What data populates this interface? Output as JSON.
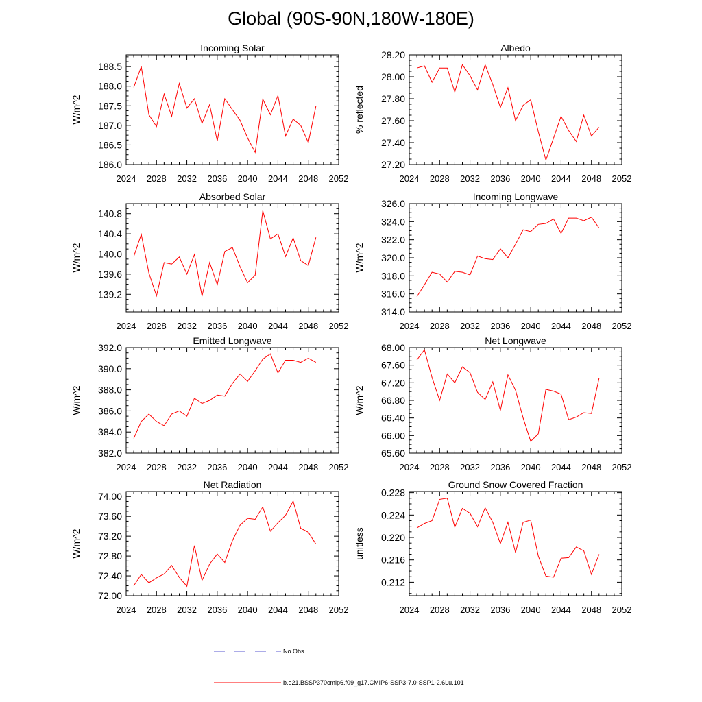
{
  "figure": {
    "title": "Global (90S-90N,180W-180E)",
    "legend": {
      "obs_label": "No Obs",
      "obs_color": "#5a5ad0",
      "model_label": "b.e21.BSSP370cmip6.f09_g17.CMIP6-SSP3-7.0-SSP1-2.6Lu.101",
      "model_color": "#ff0000"
    }
  },
  "chart_data": [
    {
      "type": "line",
      "title": "Incoming Solar",
      "ylabel": "W/m^2",
      "xlim": [
        2024,
        2052
      ],
      "ylim": [
        186.0,
        188.8
      ],
      "xticks": [
        "2024",
        "2028",
        "2032",
        "2036",
        "2040",
        "2044",
        "2048",
        "2052"
      ],
      "yticks": [
        "186.0",
        "186.5",
        "187.0",
        "187.5",
        "188.0",
        "188.5"
      ],
      "series": [
        {
          "color": "#ff0000",
          "x": [
            2025,
            2026,
            2027,
            2028,
            2029,
            2030,
            2031,
            2032,
            2033,
            2034,
            2035,
            2036,
            2037,
            2038,
            2039,
            2040,
            2041,
            2042,
            2043,
            2044,
            2045,
            2046,
            2047,
            2048,
            2049
          ],
          "y": [
            187.97,
            188.5,
            187.27,
            186.97,
            187.8,
            187.23,
            188.07,
            187.44,
            187.68,
            187.05,
            187.53,
            186.6,
            187.68,
            187.4,
            187.13,
            186.68,
            186.31,
            187.67,
            187.27,
            187.76,
            186.73,
            187.16,
            187.0,
            186.56,
            187.49
          ]
        }
      ]
    },
    {
      "type": "line",
      "title": "Albedo",
      "ylabel": "% reflected",
      "xlim": [
        2024,
        2052
      ],
      "ylim": [
        27.2,
        28.2
      ],
      "xticks": [
        "2024",
        "2028",
        "2032",
        "2036",
        "2040",
        "2044",
        "2048",
        "2052"
      ],
      "yticks": [
        "27.20",
        "27.40",
        "27.60",
        "27.80",
        "28.00",
        "28.20"
      ],
      "series": [
        {
          "color": "#ff0000",
          "x": [
            2025,
            2026,
            2027,
            2028,
            2029,
            2030,
            2031,
            2032,
            2033,
            2034,
            2035,
            2036,
            2037,
            2038,
            2039,
            2040,
            2041,
            2042,
            2043,
            2044,
            2045,
            2046,
            2047,
            2048,
            2049
          ],
          "y": [
            28.08,
            28.1,
            27.95,
            28.08,
            28.08,
            27.86,
            28.11,
            28.01,
            27.88,
            28.11,
            27.93,
            27.72,
            27.9,
            27.6,
            27.74,
            27.79,
            27.5,
            27.24,
            27.44,
            27.64,
            27.51,
            27.41,
            27.65,
            27.46,
            27.54
          ]
        }
      ]
    },
    {
      "type": "line",
      "title": "Absorbed Solar",
      "ylabel": "W/m^2",
      "xlim": [
        2024,
        2052
      ],
      "ylim": [
        138.85,
        141.0
      ],
      "xticks": [
        "2024",
        "2028",
        "2032",
        "2036",
        "2040",
        "2044",
        "2048",
        "2052"
      ],
      "yticks": [
        "139.2",
        "139.6",
        "140.0",
        "140.4",
        "140.8"
      ],
      "series": [
        {
          "color": "#ff0000",
          "x": [
            2025,
            2026,
            2027,
            2028,
            2029,
            2030,
            2031,
            2032,
            2033,
            2034,
            2035,
            2036,
            2037,
            2038,
            2039,
            2040,
            2041,
            2042,
            2043,
            2044,
            2045,
            2046,
            2047,
            2048,
            2049
          ],
          "y": [
            139.95,
            140.39,
            139.62,
            139.17,
            139.83,
            139.8,
            139.94,
            139.6,
            139.99,
            139.16,
            139.83,
            139.39,
            140.05,
            140.13,
            139.75,
            139.43,
            139.58,
            140.86,
            140.3,
            140.4,
            139.95,
            140.32,
            139.87,
            139.77,
            140.33
          ]
        }
      ]
    },
    {
      "type": "line",
      "title": "Incoming Longwave",
      "ylabel": "W/m^2",
      "xlim": [
        2024,
        2052
      ],
      "ylim": [
        314.0,
        326.0
      ],
      "xticks": [
        "2024",
        "2028",
        "2032",
        "2036",
        "2040",
        "2044",
        "2048",
        "2052"
      ],
      "yticks": [
        "314.0",
        "316.0",
        "318.0",
        "320.0",
        "322.0",
        "324.0",
        "326.0"
      ],
      "series": [
        {
          "color": "#ff0000",
          "x": [
            2025,
            2026,
            2027,
            2028,
            2029,
            2030,
            2031,
            2032,
            2033,
            2034,
            2035,
            2036,
            2037,
            2038,
            2039,
            2040,
            2041,
            2042,
            2043,
            2044,
            2045,
            2046,
            2047,
            2048,
            2049
          ],
          "y": [
            315.7,
            317.0,
            318.4,
            318.2,
            317.3,
            318.5,
            318.4,
            318.1,
            320.2,
            319.9,
            319.8,
            321.0,
            320.0,
            321.5,
            323.1,
            322.9,
            323.7,
            323.8,
            324.3,
            322.7,
            324.4,
            324.4,
            324.1,
            324.5,
            323.3
          ]
        }
      ]
    },
    {
      "type": "line",
      "title": "Emitted Longwave",
      "ylabel": "W/m^2",
      "xlim": [
        2024,
        2052
      ],
      "ylim": [
        382.0,
        392.0
      ],
      "xticks": [
        "2024",
        "2028",
        "2032",
        "2036",
        "2040",
        "2044",
        "2048",
        "2052"
      ],
      "yticks": [
        "382.0",
        "384.0",
        "386.0",
        "388.0",
        "390.0",
        "392.0"
      ],
      "series": [
        {
          "color": "#ff0000",
          "x": [
            2025,
            2026,
            2027,
            2028,
            2029,
            2030,
            2031,
            2032,
            2033,
            2034,
            2035,
            2036,
            2037,
            2038,
            2039,
            2040,
            2041,
            2042,
            2043,
            2044,
            2045,
            2046,
            2047,
            2048,
            2049
          ],
          "y": [
            383.4,
            385.0,
            385.7,
            385.0,
            384.6,
            385.7,
            386.0,
            385.5,
            387.2,
            386.7,
            387.0,
            387.5,
            387.4,
            388.6,
            389.5,
            388.8,
            389.8,
            390.9,
            391.4,
            389.6,
            390.8,
            390.8,
            390.6,
            391.0,
            390.6
          ]
        }
      ]
    },
    {
      "type": "line",
      "title": "Net Longwave",
      "ylabel": "W/m^2",
      "xlim": [
        2024,
        2052
      ],
      "ylim": [
        65.6,
        68.0
      ],
      "xticks": [
        "2024",
        "2028",
        "2032",
        "2036",
        "2040",
        "2044",
        "2048",
        "2052"
      ],
      "yticks": [
        "65.60",
        "66.00",
        "66.40",
        "66.80",
        "67.20",
        "67.60",
        "68.00"
      ],
      "series": [
        {
          "color": "#ff0000",
          "x": [
            2025,
            2026,
            2027,
            2028,
            2029,
            2030,
            2031,
            2032,
            2033,
            2034,
            2035,
            2036,
            2037,
            2038,
            2039,
            2040,
            2041,
            2042,
            2043,
            2044,
            2045,
            2046,
            2047,
            2048,
            2049
          ],
          "y": [
            67.72,
            67.95,
            67.32,
            66.8,
            67.4,
            67.2,
            67.56,
            67.43,
            66.98,
            66.82,
            67.22,
            66.57,
            67.38,
            67.03,
            66.4,
            65.87,
            66.04,
            67.05,
            67.01,
            66.94,
            66.36,
            66.42,
            66.52,
            66.5,
            67.3
          ]
        }
      ]
    },
    {
      "type": "line",
      "title": "Net Radiation",
      "ylabel": "W/m^2",
      "xlim": [
        2024,
        2052
      ],
      "ylim": [
        72.0,
        74.1
      ],
      "xticks": [
        "2024",
        "2028",
        "2032",
        "2036",
        "2040",
        "2044",
        "2048",
        "2052"
      ],
      "yticks": [
        "72.00",
        "72.40",
        "72.80",
        "73.20",
        "73.60",
        "74.00"
      ],
      "series": [
        {
          "color": "#ff0000",
          "x": [
            2025,
            2026,
            2027,
            2028,
            2029,
            2030,
            2031,
            2032,
            2033,
            2034,
            2035,
            2036,
            2037,
            2038,
            2039,
            2040,
            2041,
            2042,
            2043,
            2044,
            2045,
            2046,
            2047,
            2048,
            2049
          ],
          "y": [
            72.2,
            72.43,
            72.26,
            72.36,
            72.44,
            72.61,
            72.37,
            72.19,
            73.01,
            72.31,
            72.64,
            72.84,
            72.67,
            73.11,
            73.42,
            73.56,
            73.54,
            73.79,
            73.3,
            73.47,
            73.62,
            73.91,
            73.36,
            73.28,
            73.04
          ]
        }
      ]
    },
    {
      "type": "line",
      "title": "Ground Snow Covered Fraction",
      "ylabel": "unitless",
      "xlim": [
        2024,
        2052
      ],
      "ylim": [
        0.2096,
        0.2282
      ],
      "xticks": [
        "2024",
        "2028",
        "2032",
        "2036",
        "2040",
        "2044",
        "2048",
        "2052"
      ],
      "yticks": [
        "0.212",
        "0.216",
        "0.220",
        "0.224",
        "0.228"
      ],
      "series": [
        {
          "color": "#ff0000",
          "x": [
            2025,
            2026,
            2027,
            2028,
            2029,
            2030,
            2031,
            2032,
            2033,
            2034,
            2035,
            2036,
            2037,
            2038,
            2039,
            2040,
            2041,
            2042,
            2043,
            2044,
            2045,
            2046,
            2047,
            2048,
            2049
          ],
          "y": [
            0.2217,
            0.2225,
            0.223,
            0.2268,
            0.227,
            0.2218,
            0.2252,
            0.2243,
            0.2219,
            0.2253,
            0.2227,
            0.2189,
            0.2227,
            0.2173,
            0.2227,
            0.2231,
            0.2167,
            0.2131,
            0.2129,
            0.2163,
            0.2164,
            0.2183,
            0.2176,
            0.2134,
            0.217
          ]
        }
      ]
    }
  ]
}
